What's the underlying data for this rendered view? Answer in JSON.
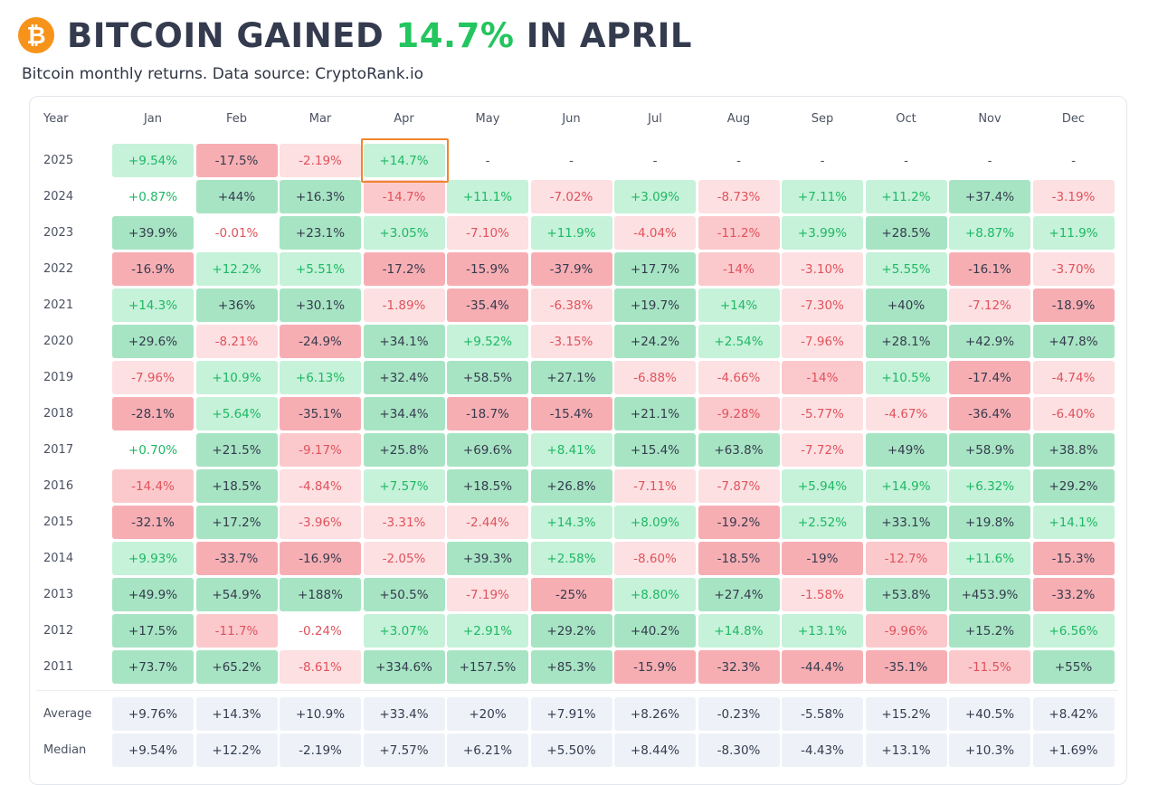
{
  "header": {
    "logo_glyph": "₿",
    "title_before": "BITCOIN GAINED ",
    "title_highlight": "14.7%",
    "title_after": " IN APRIL",
    "subtitle": "Bitcoin monthly returns. Data source: CryptoRank.io"
  },
  "colors": {
    "pos_strong": "#a7e4c3",
    "pos_medium": "#c5f2d9",
    "pos_light": "#d9fbe8",
    "neg_strong": "#f7aeb3",
    "neg_medium": "#fbc9cc",
    "neg_light": "#fde0e2",
    "summary_bg": "#eef2f8",
    "pos_text_on_light": "#1fb864",
    "neg_text_on_light": "#e0525c",
    "dark_text": "#343b4e",
    "highlight_border": "#f0862e"
  },
  "chart_data": {
    "type": "table",
    "title": "BITCOIN GAINED 14.7% IN APRIL",
    "subtitle": "Bitcoin monthly returns. Data source: CryptoRank.io",
    "highlight": {
      "year": "2025",
      "month": "Apr"
    },
    "year_header": "Year",
    "columns": [
      "Jan",
      "Feb",
      "Mar",
      "Apr",
      "May",
      "Jun",
      "Jul",
      "Aug",
      "Sep",
      "Oct",
      "Nov",
      "Dec"
    ],
    "rows": [
      {
        "year": "2025",
        "values": [
          "+9.54%",
          "-17.5%",
          "-2.19%",
          "+14.7%",
          "-",
          "-",
          "-",
          "-",
          "-",
          "-",
          "-",
          "-"
        ]
      },
      {
        "year": "2024",
        "values": [
          "+0.87%",
          "+44%",
          "+16.3%",
          "-14.7%",
          "+11.1%",
          "-7.02%",
          "+3.09%",
          "-8.73%",
          "+7.11%",
          "+11.2%",
          "+37.4%",
          "-3.19%"
        ]
      },
      {
        "year": "2023",
        "values": [
          "+39.9%",
          "-0.01%",
          "+23.1%",
          "+3.05%",
          "-7.10%",
          "+11.9%",
          "-4.04%",
          "-11.2%",
          "+3.99%",
          "+28.5%",
          "+8.87%",
          "+11.9%"
        ]
      },
      {
        "year": "2022",
        "values": [
          "-16.9%",
          "+12.2%",
          "+5.51%",
          "-17.2%",
          "-15.9%",
          "-37.9%",
          "+17.7%",
          "-14%",
          "-3.10%",
          "+5.55%",
          "-16.1%",
          "-3.70%"
        ]
      },
      {
        "year": "2021",
        "values": [
          "+14.3%",
          "+36%",
          "+30.1%",
          "-1.89%",
          "-35.4%",
          "-6.38%",
          "+19.7%",
          "+14%",
          "-7.30%",
          "+40%",
          "-7.12%",
          "-18.9%"
        ]
      },
      {
        "year": "2020",
        "values": [
          "+29.6%",
          "-8.21%",
          "-24.9%",
          "+34.1%",
          "+9.52%",
          "-3.15%",
          "+24.2%",
          "+2.54%",
          "-7.96%",
          "+28.1%",
          "+42.9%",
          "+47.8%"
        ]
      },
      {
        "year": "2019",
        "values": [
          "-7.96%",
          "+10.9%",
          "+6.13%",
          "+32.4%",
          "+58.5%",
          "+27.1%",
          "-6.88%",
          "-4.66%",
          "-14%",
          "+10.5%",
          "-17.4%",
          "-4.74%"
        ]
      },
      {
        "year": "2018",
        "values": [
          "-28.1%",
          "+5.64%",
          "-35.1%",
          "+34.4%",
          "-18.7%",
          "-15.4%",
          "+21.1%",
          "-9.28%",
          "-5.77%",
          "-4.67%",
          "-36.4%",
          "-6.40%"
        ]
      },
      {
        "year": "2017",
        "values": [
          "+0.70%",
          "+21.5%",
          "-9.17%",
          "+25.8%",
          "+69.6%",
          "+8.41%",
          "+15.4%",
          "+63.8%",
          "-7.72%",
          "+49%",
          "+58.9%",
          "+38.8%"
        ]
      },
      {
        "year": "2016",
        "values": [
          "-14.4%",
          "+18.5%",
          "-4.84%",
          "+7.57%",
          "+18.5%",
          "+26.8%",
          "-7.11%",
          "-7.87%",
          "+5.94%",
          "+14.9%",
          "+6.32%",
          "+29.2%"
        ]
      },
      {
        "year": "2015",
        "values": [
          "-32.1%",
          "+17.2%",
          "-3.96%",
          "-3.31%",
          "-2.44%",
          "+14.3%",
          "+8.09%",
          "-19.2%",
          "+2.52%",
          "+33.1%",
          "+19.8%",
          "+14.1%"
        ]
      },
      {
        "year": "2014",
        "values": [
          "+9.93%",
          "-33.7%",
          "-16.9%",
          "-2.05%",
          "+39.3%",
          "+2.58%",
          "-8.60%",
          "-18.5%",
          "-19%",
          "-12.7%",
          "+11.6%",
          "-15.3%"
        ]
      },
      {
        "year": "2013",
        "values": [
          "+49.9%",
          "+54.9%",
          "+188%",
          "+50.5%",
          "-7.19%",
          "-25%",
          "+8.80%",
          "+27.4%",
          "-1.58%",
          "+53.8%",
          "+453.9%",
          "-33.2%"
        ]
      },
      {
        "year": "2012",
        "values": [
          "+17.5%",
          "-11.7%",
          "-0.24%",
          "+3.07%",
          "+2.91%",
          "+29.2%",
          "+40.2%",
          "+14.8%",
          "+13.1%",
          "-9.96%",
          "+15.2%",
          "+6.56%"
        ]
      },
      {
        "year": "2011",
        "values": [
          "+73.7%",
          "+65.2%",
          "-8.61%",
          "+334.6%",
          "+157.5%",
          "+85.3%",
          "-15.9%",
          "-32.3%",
          "-44.4%",
          "-35.1%",
          "-11.5%",
          "+55%"
        ]
      }
    ],
    "summary": [
      {
        "label": "Average",
        "values": [
          "+9.76%",
          "+14.3%",
          "+10.9%",
          "+33.4%",
          "+20%",
          "+7.91%",
          "+8.26%",
          "-0.23%",
          "-5.58%",
          "+15.2%",
          "+40.5%",
          "+8.42%"
        ]
      },
      {
        "label": "Median",
        "values": [
          "+9.54%",
          "+12.2%",
          "-2.19%",
          "+7.57%",
          "+6.21%",
          "+5.50%",
          "+8.44%",
          "-8.30%",
          "-4.43%",
          "+13.1%",
          "+10.3%",
          "+1.69%"
        ]
      }
    ]
  }
}
